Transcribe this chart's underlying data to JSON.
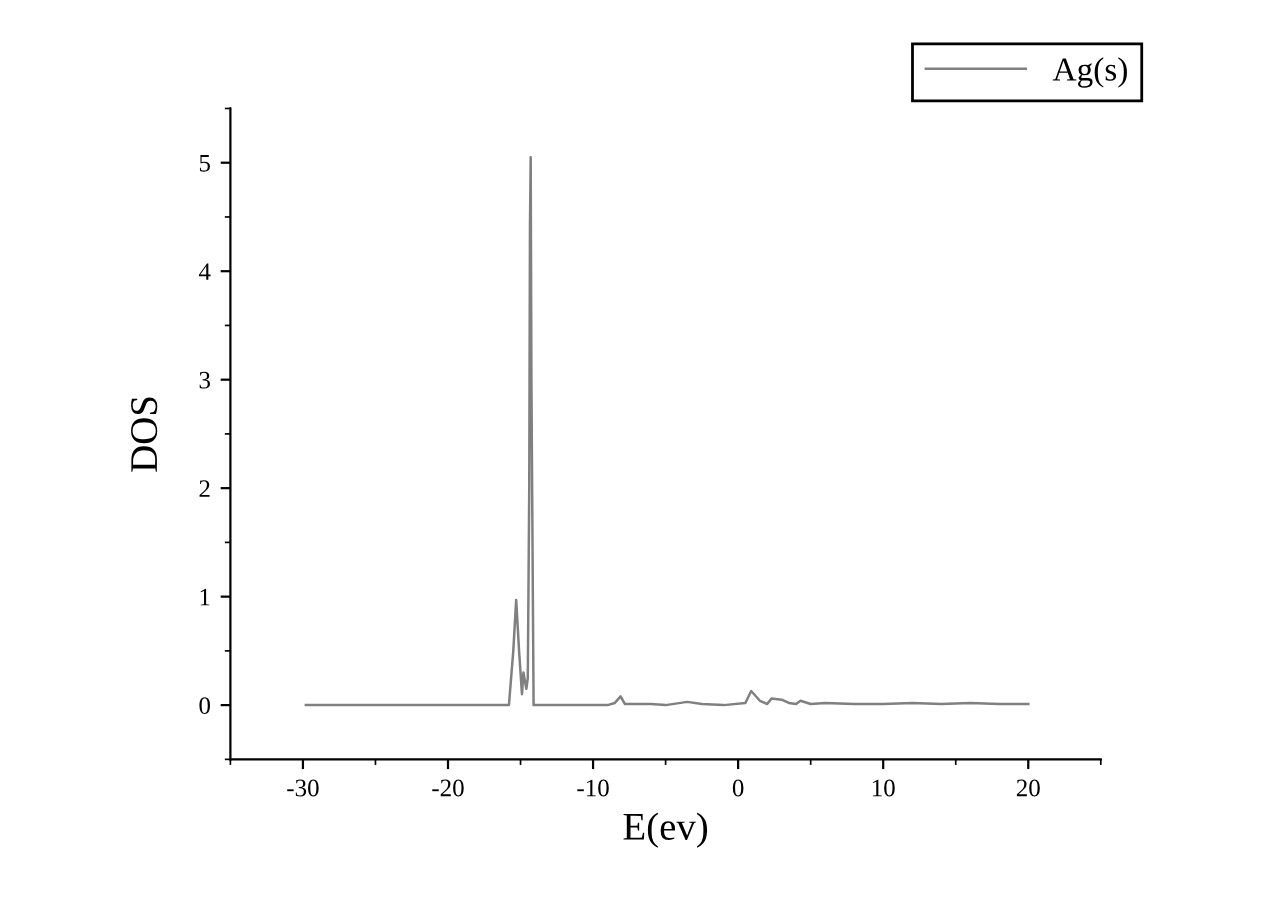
{
  "chart_data": {
    "type": "line",
    "xlabel": "E(ev)",
    "ylabel": "DOS",
    "xlim": [
      -35,
      25
    ],
    "xticks": [
      -30,
      -20,
      -10,
      0,
      10,
      20
    ],
    "ylim": [
      -0.5,
      5.5
    ],
    "yticks": [
      0,
      1,
      2,
      3,
      4,
      5
    ],
    "legend": "top right",
    "grid": false,
    "series": [
      {
        "name": "Ag(s)",
        "color": "#808080",
        "x": [
          -29.8,
          -15.8,
          -15.5,
          -15.3,
          -15.1,
          -14.9,
          -14.8,
          -14.6,
          -14.5,
          -14.4,
          -14.35,
          -14.3,
          -14.25,
          -14.1,
          -9,
          -8.5,
          -8.1,
          -7.8,
          -6,
          -5,
          -3.5,
          -2.5,
          -1,
          0.5,
          0.9,
          1.5,
          2,
          2.3,
          3,
          3.5,
          4,
          4.3,
          5,
          6,
          8,
          10,
          12,
          14,
          16,
          18,
          20
        ],
        "values": [
          0,
          0,
          0.5,
          0.97,
          0.5,
          0.1,
          0.3,
          0.15,
          0.25,
          2,
          4.4,
          5.05,
          3,
          0,
          0,
          0.02,
          0.08,
          0.01,
          0.01,
          0,
          0.03,
          0.01,
          0,
          0.02,
          0.13,
          0.04,
          0.01,
          0.06,
          0.05,
          0.02,
          0.01,
          0.04,
          0.01,
          0.02,
          0.01,
          0.01,
          0.02,
          0.01,
          0.02,
          0.01,
          0.01
        ]
      }
    ]
  }
}
